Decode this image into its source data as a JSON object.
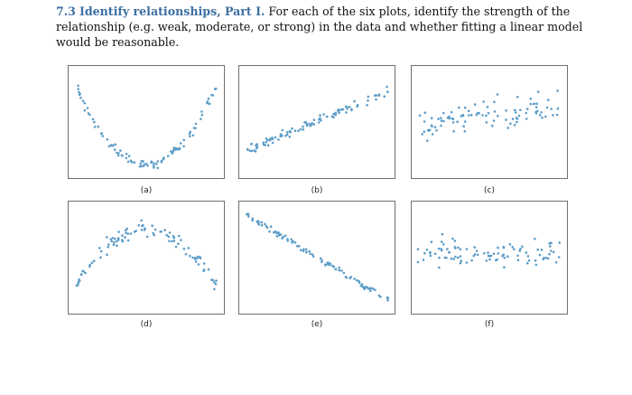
{
  "problem": {
    "number": "7.3",
    "heading": "Identify relationships, Part I.",
    "text": "For each of the six plots, identify the strength of the relationship (e.g. weak, moderate, or strong) in the data and whether fitting a linear model would be reasonable."
  },
  "point_color": "#5b9cc8",
  "chart_data": [
    {
      "type": "scatter",
      "caption": "(a)",
      "pattern": "u-shape",
      "n": 95,
      "seed": 11,
      "noise": 0.05
    },
    {
      "type": "scatter",
      "caption": "(b)",
      "pattern": "positive-linear",
      "n": 95,
      "seed": 23,
      "noise": 0.055
    },
    {
      "type": "scatter",
      "caption": "(c)",
      "pattern": "weak-positive",
      "n": 95,
      "seed": 37,
      "noise": 0.16
    },
    {
      "type": "scatter",
      "caption": "(d)",
      "pattern": "inverted-u",
      "n": 95,
      "seed": 41,
      "noise": 0.08
    },
    {
      "type": "scatter",
      "caption": "(e)",
      "pattern": "negative-linear",
      "n": 95,
      "seed": 53,
      "noise": 0.035
    },
    {
      "type": "scatter",
      "caption": "(f)",
      "pattern": "no-relationship",
      "n": 95,
      "seed": 67,
      "noise": 0.15
    }
  ]
}
